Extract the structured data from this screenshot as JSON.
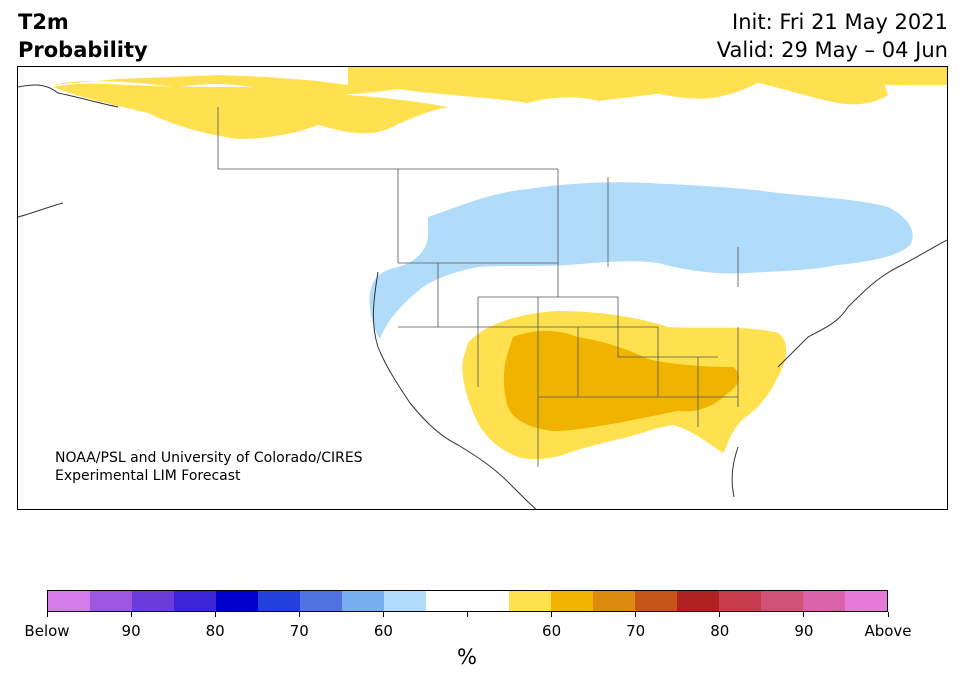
{
  "title": {
    "line1": "T2m",
    "line2": "Probability",
    "init": "Init: Fri 21 May 2021",
    "valid": "Valid: 29 May – 04 Jun"
  },
  "credit": {
    "line1": "NOAA/PSL and University of Colorado/CIRES",
    "line2": "Experimental LIM Forecast"
  },
  "colorbar": {
    "unit": "%",
    "colors": [
      "#d57bea",
      "#9c56e0",
      "#6a3ddb",
      "#3a24d6",
      "#0000cc",
      "#2240dc",
      "#4f72e3",
      "#78aff0",
      "#b0dcfa",
      "#ffffff",
      "#ffffff",
      "#ffe14f",
      "#f0b400",
      "#dd8b10",
      "#c75518",
      "#b02121",
      "#c53c4c",
      "#d05278",
      "#da62a8",
      "#e77bd8"
    ],
    "tick_labels": [
      "Below",
      "90",
      "80",
      "70",
      "60",
      "",
      "60",
      "70",
      "80",
      "90",
      "Above"
    ]
  },
  "legend_colors": {
    "below_light": "#b0dcfa",
    "above_light": "#ffe14f",
    "above_mid": "#f0b400"
  }
}
